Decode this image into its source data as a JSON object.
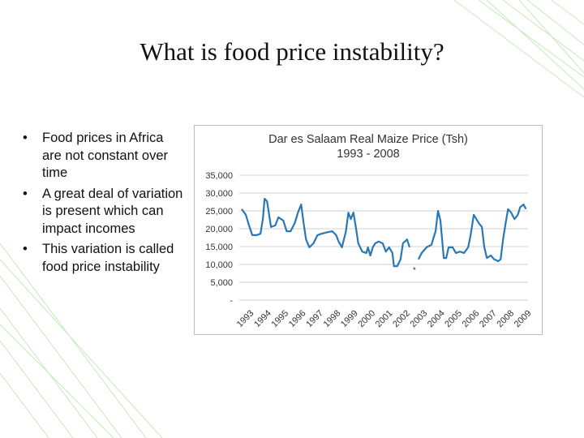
{
  "slide_title": "What is food price instability?",
  "bullets": [
    "Food prices in Africa are not constant over time",
    "A great deal of variation is present which can impact incomes",
    "This variation is called food price instability"
  ],
  "chart_data": {
    "type": "line",
    "title": "Dar es Salaam Real Maize Price (Tsh)",
    "subtitle": "1993 - 2008",
    "color": "#2878b8",
    "x": [
      1993.09,
      1993.33,
      1993.47,
      1993.7,
      1993.94,
      1994.17,
      1994.31,
      1994.41,
      1994.55,
      1994.64,
      1994.78,
      1995.02,
      1995.21,
      1995.49,
      1995.68,
      1995.91,
      1996.15,
      1996.33,
      1996.52,
      1996.66,
      1996.8,
      1996.99,
      1997.23,
      1997.46,
      1997.69,
      1997.93,
      1998.31,
      1998.54,
      1998.68,
      1998.87,
      1999.1,
      1999.24,
      1999.38,
      1999.53,
      1999.67,
      1999.81,
      2000.04,
      2000.28,
      2000.37,
      2000.51,
      2000.65,
      2000.79,
      2000.98,
      2001.22,
      2001.4,
      2001.59,
      2001.78,
      2001.87,
      2002.06,
      2002.25,
      2002.39,
      2002.62,
      2002.77,
      2002.88,
      2003.0,
      2003.09,
      2003.18,
      2003.28,
      2003.47,
      2003.75,
      2004.03,
      2004.27,
      2004.41,
      2004.55,
      2004.74,
      2004.88,
      2005.02,
      2005.25,
      2005.44,
      2005.68,
      2005.91,
      2006.15,
      2006.29,
      2006.47,
      2006.62,
      2006.76,
      2006.94,
      2007.08,
      2007.23,
      2007.46,
      2007.65,
      2007.88,
      2008.02,
      2008.16,
      2008.31,
      2008.45,
      2008.63,
      2008.82,
      2009.01,
      2009.15,
      2009.34,
      2009.48
    ],
    "values": [
      25500,
      23900,
      21600,
      18200,
      18200,
      18600,
      22700,
      28400,
      27700,
      25000,
      20500,
      20900,
      23200,
      22300,
      19300,
      19300,
      21600,
      24500,
      26800,
      21600,
      17000,
      14800,
      15900,
      18200,
      18600,
      18900,
      19300,
      18200,
      16400,
      14800,
      19300,
      24500,
      22700,
      24500,
      20500,
      15900,
      13600,
      13200,
      14800,
      12500,
      14800,
      15900,
      16400,
      15900,
      13600,
      14800,
      13200,
      9500,
      9500,
      11400,
      15900,
      17000,
      14800,
      null,
      9100,
      8600,
      null,
      11400,
      13200,
      14800,
      15500,
      19300,
      25000,
      22300,
      11800,
      11800,
      14800,
      14800,
      13200,
      13600,
      13200,
      14800,
      18200,
      23900,
      22700,
      21600,
      20500,
      14800,
      11800,
      12500,
      11400,
      10900,
      11400,
      17000,
      21600,
      25500,
      24500,
      22700,
      23900,
      26100,
      26800,
      25500
    ],
    "xlim": [
      1992.95,
      2009.6
    ],
    "xticks": [
      1993,
      1994,
      1995,
      1996,
      1997,
      1998,
      1999,
      2000,
      2001,
      2002,
      2003,
      2004,
      2005,
      2006,
      2007,
      2008,
      2009
    ],
    "ylim": [
      0,
      35000
    ],
    "yticks": [
      {
        "value": 0,
        "label": "-"
      },
      {
        "value": 5000,
        "label": "5,000"
      },
      {
        "value": 10000,
        "label": "10,000"
      },
      {
        "value": 15000,
        "label": "15,000"
      },
      {
        "value": 20000,
        "label": "20,000"
      },
      {
        "value": 25000,
        "label": "25,000"
      },
      {
        "value": 30000,
        "label": "30,000"
      },
      {
        "value": 35000,
        "label": "35,000"
      }
    ],
    "grid": true
  }
}
